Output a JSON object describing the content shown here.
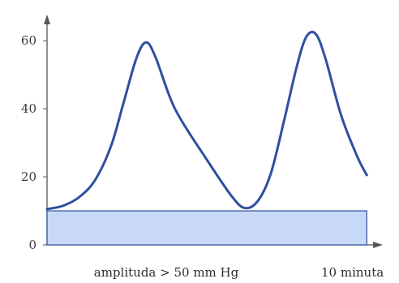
{
  "chart_data": {
    "type": "line",
    "title": "",
    "xlabel": "amplituda > 50 mm Hg",
    "x_end_label": "10 minuta",
    "ylabel": "",
    "ylim": [
      0,
      66
    ],
    "y_ticks": [
      {
        "value": 0,
        "label": "0"
      },
      {
        "value": 20,
        "label": "20"
      },
      {
        "value": 40,
        "label": "40"
      },
      {
        "value": 60,
        "label": "60"
      }
    ],
    "xlim": [
      0,
      10.5
    ],
    "grid": false,
    "baseline_band": {
      "y_from": 0,
      "y_to": 10,
      "x_from": 0,
      "x_to": 10
    },
    "series": [
      {
        "points": [
          [
            0.0,
            10.5
          ],
          [
            0.5,
            11.5
          ],
          [
            1.0,
            14.0
          ],
          [
            1.5,
            19.0
          ],
          [
            2.0,
            29.0
          ],
          [
            2.4,
            42.0
          ],
          [
            2.8,
            55.0
          ],
          [
            3.1,
            59.5
          ],
          [
            3.4,
            55.0
          ],
          [
            4.0,
            40.0
          ],
          [
            5.0,
            25.0
          ],
          [
            5.8,
            14.0
          ],
          [
            6.2,
            10.8
          ],
          [
            6.6,
            13.0
          ],
          [
            7.0,
            21.0
          ],
          [
            7.4,
            36.0
          ],
          [
            7.8,
            52.0
          ],
          [
            8.1,
            61.0
          ],
          [
            8.4,
            62.0
          ],
          [
            8.7,
            55.0
          ],
          [
            9.2,
            38.0
          ],
          [
            9.7,
            26.0
          ],
          [
            10.0,
            20.5
          ]
        ]
      }
    ],
    "colors": {
      "line": "#2f4fa0",
      "band_fill": "#c7d9f7",
      "band_stroke": "#2f4fa0",
      "axis": "#555555"
    }
  }
}
